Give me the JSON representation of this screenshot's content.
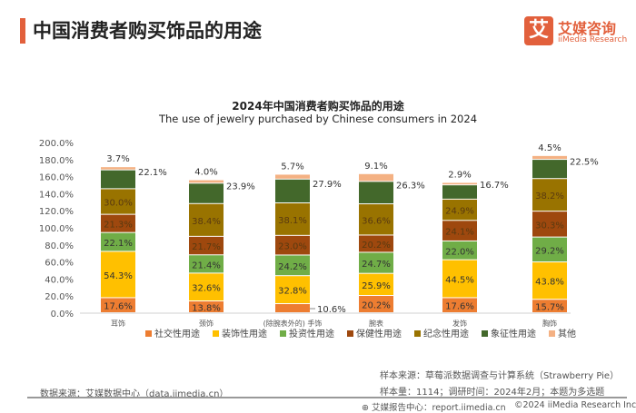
{
  "header": {
    "title": "中国消费者购买饰品的用途"
  },
  "logo": {
    "mark": "艾",
    "cn": "艾媒咨询",
    "en": "iiMedia Research"
  },
  "chart_data": {
    "type": "bar",
    "stacked": true,
    "title": "2024年中国消费者购买饰品的用途",
    "subtitle": "The use of jewelry purchased by Chinese consumers in 2024",
    "categories": [
      "耳饰",
      "颈饰",
      "(除腕表外的) 手饰",
      "腕表",
      "发饰",
      "胸饰"
    ],
    "ylim": [
      0,
      200
    ],
    "yticks": [
      "0.0%",
      "20.0%",
      "40.0%",
      "60.0%",
      "80.0%",
      "100.0%",
      "120.0%",
      "140.0%",
      "160.0%",
      "180.0%",
      "200.0%"
    ],
    "grid": false,
    "legend": "bottom",
    "series": [
      {
        "name": "社交性用途",
        "color": "#ED7D31",
        "values": [
          17.6,
          13.8,
          10.6,
          20.2,
          17.6,
          15.7
        ]
      },
      {
        "name": "装饰性用途",
        "color": "#FFC000",
        "values": [
          54.3,
          32.6,
          32.8,
          25.9,
          44.5,
          43.8
        ]
      },
      {
        "name": "投资性用途",
        "color": "#70AD47",
        "values": [
          22.1,
          21.4,
          24.2,
          24.7,
          22.0,
          29.2
        ]
      },
      {
        "name": "保健性用途",
        "color": "#9E480E",
        "values": [
          21.3,
          21.7,
          23.0,
          20.2,
          24.1,
          30.3
        ]
      },
      {
        "name": "纪念性用途",
        "color": "#997300",
        "values": [
          30.0,
          38.4,
          38.1,
          36.6,
          24.9,
          38.2
        ]
      },
      {
        "name": "象征性用途",
        "color": "#43682B",
        "values": [
          22.1,
          23.9,
          27.9,
          26.3,
          16.7,
          22.5
        ]
      },
      {
        "name": "其他",
        "color": "#F4B183",
        "values": [
          3.7,
          4.0,
          5.7,
          9.1,
          2.9,
          4.5
        ]
      }
    ]
  },
  "footer": {
    "source": "数据来源：艾媒数据中心（data.iimedia.cn）",
    "sample_source": "样本来源：草莓派数据调查与计算系统（Strawberry Pie）",
    "sample_info": "样本量：1114；调研时间：2024年2月；本题为多选题",
    "report": "艾媒报告中心：report.iimedia.cn",
    "copyright": "©2024  iiMedia Research  Inc"
  }
}
